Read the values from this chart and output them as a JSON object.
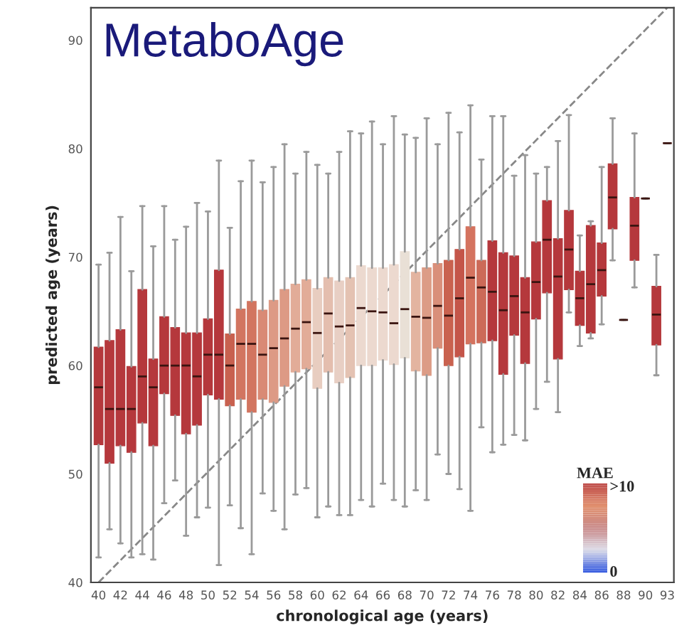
{
  "chart_data": {
    "type": "box",
    "title": "MetaboAge",
    "xlabel": "chronological age (years)",
    "ylabel": "predicted age (years)",
    "categories": [
      "40",
      null,
      "42",
      null,
      "44",
      null,
      "46",
      null,
      "48",
      null,
      "50",
      null,
      "52",
      null,
      "54",
      null,
      "56",
      null,
      "58",
      null,
      "60",
      null,
      "62",
      null,
      "64",
      null,
      "66",
      null,
      "68",
      null,
      "70",
      null,
      "72",
      null,
      "74",
      null,
      "76",
      null,
      "78",
      null,
      "80",
      null,
      "82",
      null,
      "84",
      null,
      "86",
      null,
      "88",
      null,
      "90",
      null,
      "93"
    ],
    "boxes": [
      {
        "low": 42.3,
        "q1": 52.7,
        "median": 58,
        "q3": 61.7,
        "high": 69.3
      },
      {
        "low": 44.9,
        "q1": 51.0,
        "median": 56,
        "q3": 62.3,
        "high": 70.4
      },
      {
        "low": 43.6,
        "q1": 52.6,
        "median": 56,
        "q3": 63.3,
        "high": 73.7
      },
      {
        "low": 42.3,
        "q1": 52.0,
        "median": 56,
        "q3": 59.9,
        "high": 68.7
      },
      {
        "low": 42.6,
        "q1": 54.7,
        "median": 59,
        "q3": 67.0,
        "high": 74.7
      },
      {
        "low": 42.1,
        "q1": 52.6,
        "median": 58,
        "q3": 60.6,
        "high": 71.0
      },
      {
        "low": 47.3,
        "q1": 57.4,
        "median": 60,
        "q3": 64.5,
        "high": 74.7
      },
      {
        "low": 49.4,
        "q1": 55.4,
        "median": 60,
        "q3": 63.5,
        "high": 71.6
      },
      {
        "low": 44.3,
        "q1": 53.7,
        "median": 60,
        "q3": 63.0,
        "high": 72.8
      },
      {
        "low": 46.0,
        "q1": 54.5,
        "median": 59,
        "q3": 63.0,
        "high": 75.0
      },
      {
        "low": 46.9,
        "q1": 57.3,
        "median": 61,
        "q3": 64.3,
        "high": 74.2
      },
      {
        "low": 41.6,
        "q1": 56.9,
        "median": 61,
        "q3": 68.8,
        "high": 78.9
      },
      {
        "low": 47.1,
        "q1": 56.3,
        "median": 60,
        "q3": 62.9,
        "high": 72.7
      },
      {
        "low": 45.0,
        "q1": 56.9,
        "median": 62,
        "q3": 65.2,
        "high": 77.0
      },
      {
        "low": 42.6,
        "q1": 55.7,
        "median": 62,
        "q3": 65.9,
        "high": 78.9
      },
      {
        "low": 48.2,
        "q1": 56.9,
        "median": 61,
        "q3": 65.1,
        "high": 76.9
      },
      {
        "low": 46.6,
        "q1": 56.6,
        "median": 61.6,
        "q3": 66.0,
        "high": 78.3
      },
      {
        "low": 44.9,
        "q1": 58.1,
        "median": 62.5,
        "q3": 67.0,
        "high": 80.4
      },
      {
        "low": 48.1,
        "q1": 59.4,
        "median": 63.4,
        "q3": 67.5,
        "high": 77.7
      },
      {
        "low": 48.7,
        "q1": 59.7,
        "median": 64.0,
        "q3": 67.9,
        "high": 79.7
      },
      {
        "low": 46.0,
        "q1": 57.9,
        "median": 63.0,
        "q3": 67.1,
        "high": 78.5
      },
      {
        "low": 47.0,
        "q1": 59.4,
        "median": 64.8,
        "q3": 68.1,
        "high": 77.7
      },
      {
        "low": 46.2,
        "q1": 58.4,
        "median": 63.6,
        "q3": 67.8,
        "high": 79.7
      },
      {
        "low": 46.2,
        "q1": 58.9,
        "median": 63.7,
        "q3": 68.1,
        "high": 81.6
      },
      {
        "low": 47.6,
        "q1": 60.0,
        "median": 65.3,
        "q3": 69.2,
        "high": 81.4
      },
      {
        "low": 47.0,
        "q1": 60.0,
        "median": 65.0,
        "q3": 69.0,
        "high": 82.5
      },
      {
        "low": 49.1,
        "q1": 60.5,
        "median": 64.9,
        "q3": 69.0,
        "high": 80.4
      },
      {
        "low": 47.6,
        "q1": 60.1,
        "median": 63.9,
        "q3": 69.3,
        "high": 83.0
      },
      {
        "low": 47.0,
        "q1": 60.7,
        "median": 65.2,
        "q3": 70.5,
        "high": 81.3
      },
      {
        "low": 48.5,
        "q1": 59.5,
        "median": 64.5,
        "q3": 68.6,
        "high": 81.0
      },
      {
        "low": 47.6,
        "q1": 59.1,
        "median": 64.4,
        "q3": 69.0,
        "high": 82.8
      },
      {
        "low": 51.8,
        "q1": 61.6,
        "median": 65.5,
        "q3": 69.4,
        "high": 80.4
      },
      {
        "low": 50.0,
        "q1": 60.0,
        "median": 64.6,
        "q3": 69.7,
        "high": 83.3
      },
      {
        "low": 48.6,
        "q1": 60.8,
        "median": 66.2,
        "q3": 70.7,
        "high": 81.5
      },
      {
        "low": 46.6,
        "q1": 62.0,
        "median": 68.1,
        "q3": 72.8,
        "high": 84.0
      },
      {
        "low": 54.3,
        "q1": 62.1,
        "median": 67.2,
        "q3": 69.7,
        "high": 79.0
      },
      {
        "low": 52.0,
        "q1": 62.3,
        "median": 66.8,
        "q3": 71.5,
        "high": 83.0
      },
      {
        "low": 52.7,
        "q1": 59.2,
        "median": 65.1,
        "q3": 70.4,
        "high": 83.0
      },
      {
        "low": 53.6,
        "q1": 62.8,
        "median": 66.4,
        "q3": 70.1,
        "high": 77.5
      },
      {
        "low": 53.1,
        "q1": 60.2,
        "median": 64.9,
        "q3": 68.1,
        "high": 79.4
      },
      {
        "low": 56.0,
        "q1": 64.3,
        "median": 67.7,
        "q3": 71.4,
        "high": 77.7
      },
      {
        "low": 58.5,
        "q1": 66.7,
        "median": 71.6,
        "q3": 75.2,
        "high": 78.3
      },
      {
        "low": 55.7,
        "q1": 60.6,
        "median": 68.2,
        "q3": 71.7,
        "high": 80.7
      },
      {
        "low": 64.9,
        "q1": 67.0,
        "median": 70.7,
        "q3": 74.3,
        "high": 83.1
      },
      {
        "low": 61.8,
        "q1": 63.7,
        "median": 66.2,
        "q3": 68.7,
        "high": 72.0
      },
      {
        "low": 62.5,
        "q1": 63.0,
        "median": 67.5,
        "q3": 72.9,
        "high": 73.3
      },
      {
        "low": 63.8,
        "q1": 66.4,
        "median": 68.8,
        "q3": 71.3,
        "high": 78.3
      },
      {
        "low": 69.7,
        "q1": 72.6,
        "median": 75.5,
        "q3": 78.6,
        "high": 82.8
      },
      {
        "low": 64.2,
        "q1": 64.2,
        "median": 64.2,
        "q3": 64.2,
        "high": 64.2
      },
      {
        "low": 67.2,
        "q1": 69.7,
        "median": 72.9,
        "q3": 75.5,
        "high": 81.4
      },
      {
        "low": 75.4,
        "q1": 75.4,
        "median": 75.4,
        "q3": 75.4,
        "high": 75.4
      },
      {
        "low": 59.1,
        "q1": 61.9,
        "median": 64.7,
        "q3": 67.3,
        "high": 70.2
      },
      {
        "low": 80.5,
        "q1": 80.5,
        "median": 80.5,
        "q3": 80.5,
        "high": 80.5
      }
    ],
    "colors": [
      "#b5383c",
      "#b5383c",
      "#b5383c",
      "#b5383c",
      "#b5383c",
      "#b5383c",
      "#b5383c",
      "#b5383c",
      "#b5383c",
      "#b5383c",
      "#b5383c",
      "#b5383c",
      "#c8614f",
      "#d27560",
      "#d27560",
      "#d98a75",
      "#dd9a85",
      "#dd9a85",
      "#e2ac98",
      "#e2ac98",
      "#e8cdc0",
      "#e4beae",
      "#e8cfc4",
      "#e4c2b2",
      "#ecd9cf",
      "#ecd9cf",
      "#ecd9cf",
      "#ecd9cf",
      "#e9e0d6",
      "#e3b4a0",
      "#dc9c86",
      "#d98f7a",
      "#c9624f",
      "#c45549",
      "#d4735f",
      "#cc6a58",
      "#b5383c",
      "#b5383c",
      "#b5383c",
      "#b5383c",
      "#b5383c",
      "#b5383c",
      "#b5383c",
      "#b5383c",
      "#b5383c",
      "#b5383c",
      "#b5383c",
      "#b5383c",
      "#b5383c",
      "#b5383c",
      "#b5383c",
      "#b5383c",
      "#b5383c"
    ],
    "series": [
      {
        "type": "line",
        "x": [
          "40",
          "93"
        ],
        "values": [
          40,
          93
        ],
        "color": "#888888",
        "line_style": "dashed"
      }
    ],
    "ylim": [
      40,
      93
    ],
    "yticks": [
      40,
      50,
      60,
      70,
      80,
      90
    ],
    "annotations": [
      "MAE",
      ">10",
      "0"
    ],
    "grid": false,
    "legend": false
  }
}
